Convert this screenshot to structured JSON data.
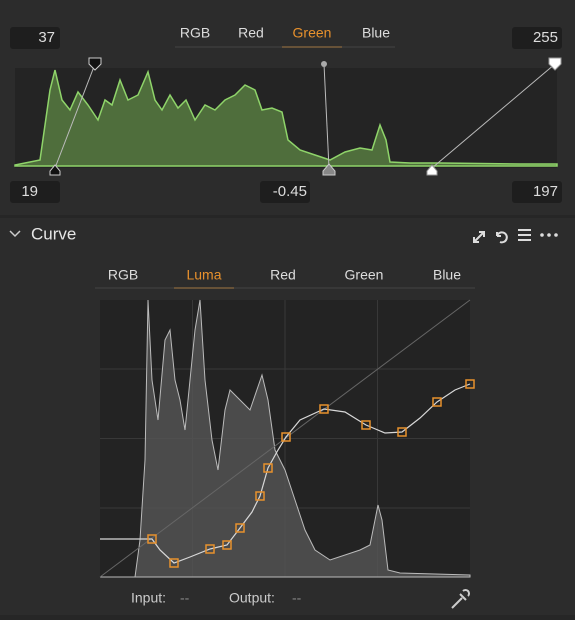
{
  "levels": {
    "input_black": "37",
    "input_white": "255",
    "tabs": [
      "RGB",
      "Red",
      "Green",
      "Blue"
    ],
    "active_tab": "Green",
    "output_black": "19",
    "midtone": "-0.45",
    "output_white": "197"
  },
  "curve": {
    "title": "Curve",
    "tabs": [
      "RGB",
      "Luma",
      "Red",
      "Green",
      "Blue"
    ],
    "active_tab": "Luma",
    "input_label": "Input:",
    "input_value": "--",
    "output_label": "Output:",
    "output_value": "--"
  }
}
